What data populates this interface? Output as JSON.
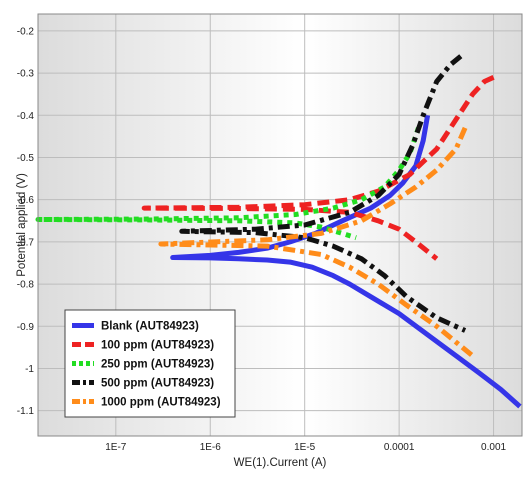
{
  "chart_data": {
    "type": "line",
    "xlabel": "WE(1).Current (A)",
    "ylabel": "Potential applied (V)",
    "x_scale": "log",
    "xlim": [
      1.5e-08,
      0.002
    ],
    "ylim": [
      -1.16,
      -0.16
    ],
    "x_ticks": [
      {
        "value": 1e-07,
        "label": "1E-7"
      },
      {
        "value": 1e-06,
        "label": "1E-6"
      },
      {
        "value": 1e-05,
        "label": "1E-5"
      },
      {
        "value": 0.0001,
        "label": "0.0001"
      },
      {
        "value": 0.001,
        "label": "0.001"
      }
    ],
    "y_ticks": [
      {
        "value": -0.2,
        "label": "-0.2"
      },
      {
        "value": -0.3,
        "label": "-0.3"
      },
      {
        "value": -0.4,
        "label": "-0.4"
      },
      {
        "value": -0.5,
        "label": "-0.5"
      },
      {
        "value": -0.6,
        "label": "-0.6"
      },
      {
        "value": -0.7,
        "label": "-0.7"
      },
      {
        "value": -0.8,
        "label": "-0.8"
      },
      {
        "value": -0.9,
        "label": "-0.9"
      },
      {
        "value": -1.0,
        "label": "-1"
      },
      {
        "value": -1.1,
        "label": "-1.1"
      }
    ],
    "grid": true,
    "legend_position": "bottom-left",
    "series": [
      {
        "name": "Blank (AUT84923)",
        "color": "#3535e8",
        "style": "solid",
        "points": [
          [
            0.0002,
            -0.4
          ],
          [
            0.00018,
            -0.46
          ],
          [
            0.00015,
            -0.52
          ],
          [
            0.00011,
            -0.56
          ],
          [
            8e-05,
            -0.59
          ],
          [
            5e-05,
            -0.62
          ],
          [
            2.5e-05,
            -0.65
          ],
          [
            1.3e-05,
            -0.68
          ],
          [
            7e-06,
            -0.7
          ],
          [
            4e-06,
            -0.715
          ],
          [
            2e-06,
            -0.725
          ],
          [
            1e-06,
            -0.732
          ],
          [
            4e-07,
            -0.737
          ],
          [
            1e-06,
            -0.738
          ],
          [
            2e-06,
            -0.74
          ],
          [
            4e-06,
            -0.743
          ],
          [
            7e-06,
            -0.748
          ],
          [
            1.2e-05,
            -0.76
          ],
          [
            2e-05,
            -0.78
          ],
          [
            3e-05,
            -0.8
          ],
          [
            5e-05,
            -0.83
          ],
          [
            0.0001,
            -0.87
          ],
          [
            0.0002,
            -0.92
          ],
          [
            0.0004,
            -0.97
          ],
          [
            0.0007,
            -1.01
          ],
          [
            0.0012,
            -1.05
          ],
          [
            0.0019,
            -1.09
          ]
        ]
      },
      {
        "name": "100 ppm (AUT84923)",
        "color": "#ee2222",
        "style": "dashed",
        "points": [
          [
            0.001,
            -0.31
          ],
          [
            0.0008,
            -0.32
          ],
          [
            0.0006,
            -0.35
          ],
          [
            0.0004,
            -0.41
          ],
          [
            0.00025,
            -0.48
          ],
          [
            0.00013,
            -0.54
          ],
          [
            6e-05,
            -0.58
          ],
          [
            3e-05,
            -0.6
          ],
          [
            1e-05,
            -0.612
          ],
          [
            2e-06,
            -0.618
          ],
          [
            2e-07,
            -0.62
          ],
          [
            2e-06,
            -0.621
          ],
          [
            1e-05,
            -0.623
          ],
          [
            3e-05,
            -0.63
          ],
          [
            6e-05,
            -0.65
          ],
          [
            0.0001,
            -0.67
          ],
          [
            0.00015,
            -0.7
          ],
          [
            0.00025,
            -0.74
          ]
        ]
      },
      {
        "name": "250 ppm (AUT84923)",
        "color": "#22dd22",
        "style": "dotted",
        "points": [
          [
            0.00016,
            -0.43
          ],
          [
            0.00013,
            -0.49
          ],
          [
            0.0001,
            -0.53
          ],
          [
            7e-05,
            -0.57
          ],
          [
            4e-05,
            -0.6
          ],
          [
            2e-05,
            -0.62
          ],
          [
            8e-06,
            -0.635
          ],
          [
            2e-06,
            -0.643
          ],
          [
            2e-07,
            -0.646
          ],
          [
            1.5e-08,
            -0.647
          ],
          [
            2e-07,
            -0.648
          ],
          [
            2e-06,
            -0.65
          ],
          [
            8e-06,
            -0.655
          ],
          [
            1.5e-05,
            -0.665
          ],
          [
            2.5e-05,
            -0.68
          ],
          [
            3.5e-05,
            -0.69
          ]
        ]
      },
      {
        "name": "500 ppm (AUT84923)",
        "color": "#111111",
        "style": "dashdot",
        "points": [
          [
            0.00045,
            -0.26
          ],
          [
            0.00035,
            -0.28
          ],
          [
            0.00025,
            -0.32
          ],
          [
            0.00018,
            -0.4
          ],
          [
            0.00014,
            -0.47
          ],
          [
            0.0001,
            -0.54
          ],
          [
            6e-05,
            -0.59
          ],
          [
            3e-05,
            -0.63
          ],
          [
            1e-05,
            -0.66
          ],
          [
            3e-06,
            -0.67
          ],
          [
            5e-07,
            -0.675
          ],
          [
            3e-06,
            -0.678
          ],
          [
            1e-05,
            -0.69
          ],
          [
            2e-05,
            -0.71
          ],
          [
            4e-05,
            -0.74
          ],
          [
            7e-05,
            -0.78
          ],
          [
            0.00012,
            -0.83
          ],
          [
            0.00025,
            -0.88
          ],
          [
            0.0005,
            -0.91
          ]
        ]
      },
      {
        "name": "1000 ppm (AUT84923)",
        "color": "#ff8c1a",
        "style": "dashdot",
        "points": [
          [
            0.0005,
            -0.43
          ],
          [
            0.0004,
            -0.48
          ],
          [
            0.00025,
            -0.53
          ],
          [
            0.00015,
            -0.57
          ],
          [
            8e-05,
            -0.61
          ],
          [
            4e-05,
            -0.65
          ],
          [
            1.5e-05,
            -0.68
          ],
          [
            4e-06,
            -0.695
          ],
          [
            3e-07,
            -0.705
          ],
          [
            4e-06,
            -0.71
          ],
          [
            1.5e-05,
            -0.73
          ],
          [
            3e-05,
            -0.76
          ],
          [
            6e-05,
            -0.8
          ],
          [
            0.00012,
            -0.85
          ],
          [
            0.00025,
            -0.9
          ],
          [
            0.0006,
            -0.97
          ]
        ]
      }
    ]
  }
}
